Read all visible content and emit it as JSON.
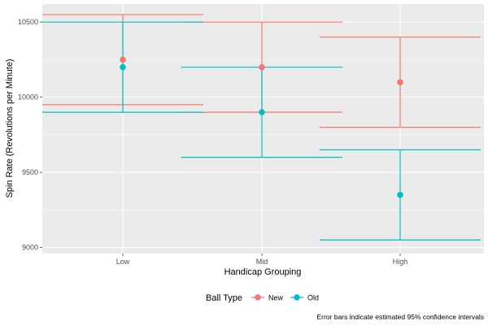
{
  "chart_data": {
    "type": "errorbar",
    "xlabel": "Handicap Grouping",
    "ylabel": "Spin Rate (Revolutions per Minute)",
    "categories": [
      "Low",
      "Mid",
      "High"
    ],
    "yticks": [
      9000,
      9500,
      10000,
      10500
    ],
    "ylim": [
      8960,
      10620
    ],
    "grid": true,
    "legend": {
      "title": "Ball Type",
      "position": "bottom"
    },
    "series": [
      {
        "name": "New",
        "color": "#F8766D",
        "values": [
          10250,
          10200,
          10100
        ],
        "lower": [
          9950,
          9900,
          9800
        ],
        "upper": [
          10550,
          10500,
          10400
        ]
      },
      {
        "name": "Old",
        "color": "#00BFC4",
        "values": [
          10200,
          9900,
          9350
        ],
        "lower": [
          9900,
          9600,
          9050
        ],
        "upper": [
          10500,
          10200,
          9650
        ]
      }
    ],
    "caption": "Error bars indicate estimated 95% confidence intervals"
  }
}
